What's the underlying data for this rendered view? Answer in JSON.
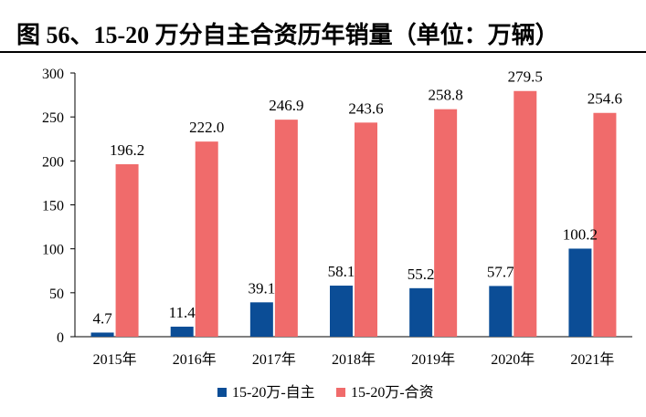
{
  "chart_data": {
    "type": "bar",
    "title": "图 56、15-20 万分自主合资历年销量（单位：万辆）",
    "categories": [
      "2015年",
      "2016年",
      "2017年",
      "2018年",
      "2019年",
      "2020年",
      "2021年"
    ],
    "series": [
      {
        "name": "15-20万-自主",
        "color": "#0b4d96",
        "values": [
          4.7,
          11.4,
          39.1,
          58.1,
          55.2,
          57.7,
          100.2
        ]
      },
      {
        "name": "15-20万-合资",
        "color": "#f06b6b",
        "values": [
          196.2,
          222.0,
          246.9,
          243.6,
          258.8,
          279.5,
          254.6
        ]
      }
    ],
    "data_labels": {
      "self": [
        "4.7",
        "11.4",
        "39.1",
        "58.1",
        "55.2",
        "57.7",
        "100.2"
      ],
      "jv": [
        "196.2",
        "222.0",
        "246.9",
        "243.6",
        "258.8",
        "279.5",
        "254.6"
      ]
    },
    "y_ticks": [
      "0",
      "50",
      "100",
      "150",
      "200",
      "250",
      "300"
    ],
    "ylim": [
      0,
      300
    ],
    "grid": false,
    "legend_position": "bottom"
  }
}
